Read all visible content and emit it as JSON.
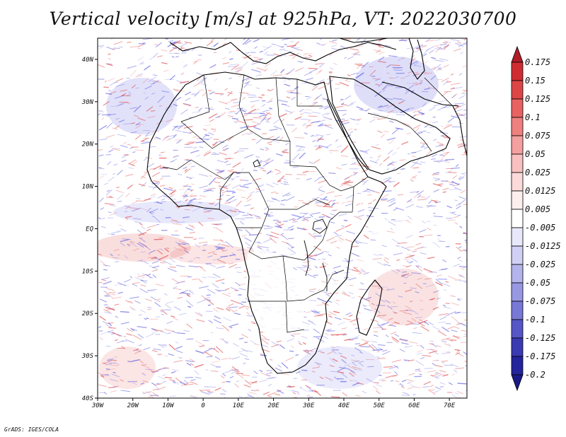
{
  "title": "Vertical velocity [m/s] at 925hPa, VT: 2022030700",
  "credit": "GrADS: IGES/COLA",
  "map": {
    "projection": "latlon",
    "lon_range": [
      -30,
      75
    ],
    "lat_range": [
      -40,
      45
    ],
    "x_ticks": [
      {
        "label": "30W",
        "lon": -30
      },
      {
        "label": "20W",
        "lon": -20
      },
      {
        "label": "10W",
        "lon": -10
      },
      {
        "label": "0",
        "lon": 0
      },
      {
        "label": "10E",
        "lon": 10
      },
      {
        "label": "20E",
        "lon": 20
      },
      {
        "label": "30E",
        "lon": 30
      },
      {
        "label": "40E",
        "lon": 40
      },
      {
        "label": "50E",
        "lon": 50
      },
      {
        "label": "60E",
        "lon": 60
      },
      {
        "label": "70E",
        "lon": 70
      }
    ],
    "y_ticks": [
      {
        "label": "40N",
        "lat": 40
      },
      {
        "label": "30N",
        "lat": 30
      },
      {
        "label": "20N",
        "lat": 20
      },
      {
        "label": "10N",
        "lat": 10
      },
      {
        "label": "EQ",
        "lat": 0
      },
      {
        "label": "10S",
        "lat": -10
      },
      {
        "label": "20S",
        "lat": -20
      },
      {
        "label": "30S",
        "lat": -30
      },
      {
        "label": "40S",
        "lat": -40
      }
    ]
  },
  "colorbar": {
    "levels": [
      "0.175",
      "0.15",
      "0.125",
      "0.1",
      "0.075",
      "0.05",
      "0.025",
      "0.0125",
      "0.005",
      "-0.005",
      "-0.0125",
      "-0.025",
      "-0.05",
      "-0.075",
      "-0.1",
      "-0.125",
      "-0.175",
      "-0.2"
    ],
    "colors": [
      "#b01c28",
      "#cf2c32",
      "#dd4646",
      "#e86262",
      "#ef8080",
      "#f4a0a0",
      "#f8c0c0",
      "#fbdada",
      "#fdeeee",
      "#ffffff",
      "#e8e8fa",
      "#d0d0f4",
      "#b4b4ec",
      "#9898e2",
      "#7878d6",
      "#5656c6",
      "#3a3ab2",
      "#24249c",
      "#1a1a86"
    ]
  },
  "colors": {
    "positive": "#e04848",
    "negative": "#5a5ae0",
    "coast": "#000000"
  }
}
